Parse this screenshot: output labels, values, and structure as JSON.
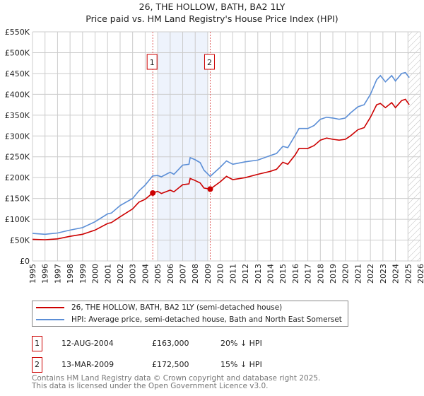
{
  "title": "26, THE HOLLOW, BATH, BA2 1LY",
  "subtitle": "Price paid vs. HM Land Registry's House Price Index (HPI)",
  "colors": {
    "property": "#cc0000",
    "hpi": "#5b8ed6",
    "shade": "#eef3fc",
    "grid": "#cccccc"
  },
  "chart_data": {
    "type": "line",
    "xlim": [
      1995,
      2026
    ],
    "ylim": [
      0,
      550000
    ],
    "x_ticks": [
      "1995",
      "1996",
      "1997",
      "1998",
      "1999",
      "2000",
      "2001",
      "2002",
      "2003",
      "2004",
      "2005",
      "2006",
      "2007",
      "2008",
      "2009",
      "2010",
      "2011",
      "2012",
      "2013",
      "2014",
      "2015",
      "2016",
      "2017",
      "2018",
      "2019",
      "2020",
      "2021",
      "2022",
      "2023",
      "2024",
      "2025",
      "2026"
    ],
    "y_ticks": [
      {
        "v": 0,
        "label": "£0"
      },
      {
        "v": 50000,
        "label": "£50K"
      },
      {
        "v": 100000,
        "label": "£100K"
      },
      {
        "v": 150000,
        "label": "£150K"
      },
      {
        "v": 200000,
        "label": "£200K"
      },
      {
        "v": 250000,
        "label": "£250K"
      },
      {
        "v": 300000,
        "label": "£300K"
      },
      {
        "v": 350000,
        "label": "£350K"
      },
      {
        "v": 400000,
        "label": "£400K"
      },
      {
        "v": 450000,
        "label": "£450K"
      },
      {
        "v": 500000,
        "label": "£500K"
      },
      {
        "v": 550000,
        "label": "£550K"
      }
    ],
    "shaded_range": [
      2005.0,
      2009.0
    ],
    "forecast_hatch_from": 2025.0,
    "series": [
      {
        "name": "26, THE HOLLOW, BATH, BA2 1LY (semi-detached house)",
        "color": "#cc0000",
        "x": [
          1995,
          1996,
          1997,
          1998,
          1999,
          2000,
          2001,
          2001.3,
          2002,
          2003,
          2003.5,
          2004,
          2004.6,
          2005,
          2005.3,
          2006,
          2006.3,
          2007,
          2007.5,
          2007.6,
          2008,
          2008.4,
          2008.7,
          2009.2,
          2010,
          2010.5,
          2011,
          2012,
          2013,
          2014,
          2014.5,
          2015,
          2015.4,
          2016,
          2016.3,
          2017,
          2017.5,
          2018,
          2018.5,
          2019,
          2019.5,
          2020,
          2020.4,
          2021,
          2021.5,
          2022,
          2022.5,
          2022.8,
          2023.2,
          2023.7,
          2024,
          2024.5,
          2024.8,
          2025.1
        ],
        "y": [
          52000,
          51000,
          53000,
          59000,
          64000,
          74000,
          90000,
          92000,
          106000,
          125000,
          141000,
          148000,
          163000,
          167000,
          162000,
          170000,
          166000,
          183000,
          185000,
          198000,
          193000,
          187000,
          175000,
          172500,
          190000,
          203000,
          195000,
          200000,
          208000,
          215000,
          220000,
          237000,
          232000,
          255000,
          270000,
          270000,
          277000,
          290000,
          295000,
          292000,
          290000,
          292000,
          300000,
          315000,
          320000,
          345000,
          375000,
          378000,
          368000,
          380000,
          368000,
          385000,
          388000,
          375000
        ]
      },
      {
        "name": "HPI: Average price, semi-detached house, Bath and North East Somerset",
        "color": "#5b8ed6",
        "x": [
          1995,
          1996,
          1997,
          1998,
          1999,
          2000,
          2001,
          2001.3,
          2002,
          2003,
          2003.5,
          2004,
          2004.6,
          2005,
          2005.3,
          2006,
          2006.3,
          2007,
          2007.5,
          2007.6,
          2008,
          2008.4,
          2008.7,
          2009.2,
          2010,
          2010.5,
          2011,
          2012,
          2013,
          2014,
          2014.5,
          2015,
          2015.4,
          2016,
          2016.3,
          2017,
          2017.5,
          2018,
          2018.5,
          2019,
          2019.5,
          2020,
          2020.4,
          2021,
          2021.5,
          2022,
          2022.5,
          2022.8,
          2023.2,
          2023.7,
          2024,
          2024.5,
          2024.8,
          2025.1
        ],
        "y": [
          66000,
          64000,
          67000,
          74000,
          80000,
          94000,
          113000,
          115000,
          133000,
          150000,
          168000,
          182000,
          204000,
          205000,
          202000,
          213000,
          208000,
          230000,
          232000,
          248000,
          243000,
          236000,
          218000,
          203000,
          225000,
          240000,
          232000,
          238000,
          242000,
          253000,
          258000,
          275000,
          272000,
          302000,
          318000,
          318000,
          325000,
          340000,
          345000,
          343000,
          340000,
          343000,
          355000,
          370000,
          375000,
          400000,
          435000,
          445000,
          430000,
          445000,
          432000,
          450000,
          452000,
          440000
        ]
      }
    ],
    "annotations": [
      {
        "label": "1",
        "x": 2004.61,
        "y": 163000
      },
      {
        "label": "2",
        "x": 2009.2,
        "y": 172500
      }
    ]
  },
  "legend": [
    "26, THE HOLLOW, BATH, BA2 1LY (semi-detached house)",
    "HPI: Average price, semi-detached house, Bath and North East Somerset"
  ],
  "transactions": [
    {
      "num": "1",
      "date": "12-AUG-2004",
      "price": "£163,000",
      "hpi": "20% ↓ HPI"
    },
    {
      "num": "2",
      "date": "13-MAR-2009",
      "price": "£172,500",
      "hpi": "15% ↓ HPI"
    }
  ],
  "footer": [
    "Contains HM Land Registry data © Crown copyright and database right 2025.",
    "This data is licensed under the Open Government Licence v3.0."
  ]
}
